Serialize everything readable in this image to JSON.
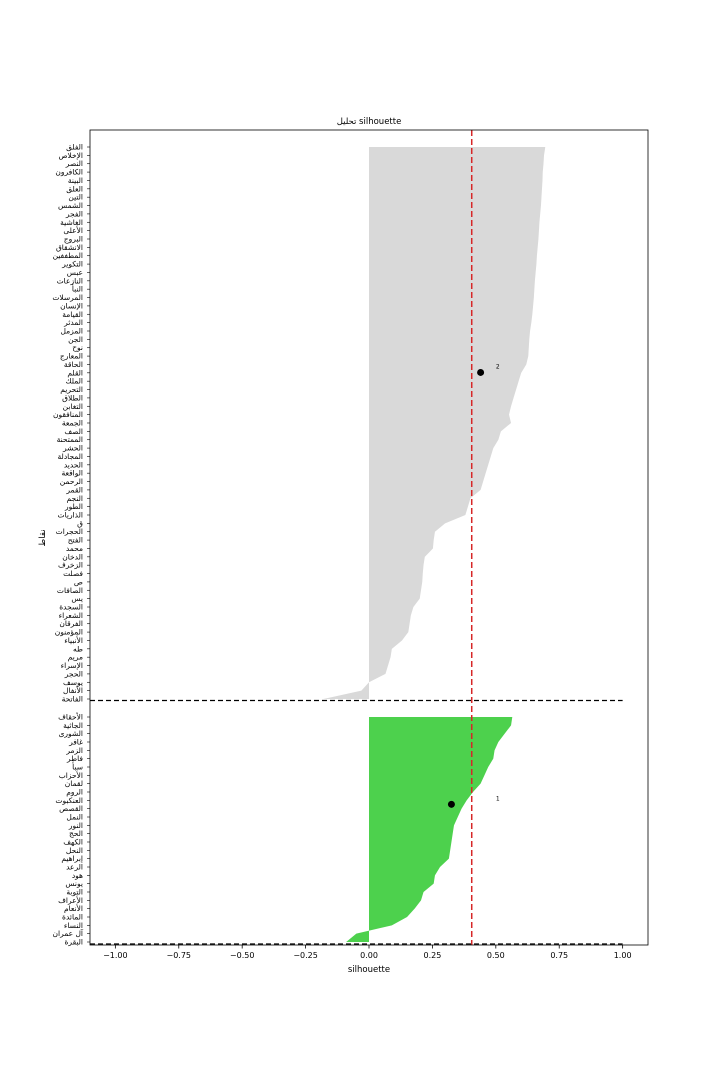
{
  "chart_data": {
    "type": "area",
    "title": "تحليل silhouette",
    "xlabel": "silhouette",
    "ylabel": "نقاط",
    "xlim": [
      -1.1,
      1.1
    ],
    "xticks": [
      -1.0,
      -0.75,
      -0.5,
      -0.25,
      0.0,
      0.25,
      0.5,
      0.75,
      1.0
    ],
    "xtick_labels": [
      "−1.00",
      "−0.75",
      "−0.50",
      "−0.25",
      "0.00",
      "0.25",
      "0.50",
      "0.75",
      "1.00"
    ],
    "threshold_line": {
      "x": 0.405,
      "color": "#d62728",
      "style": "dashed"
    },
    "grid": false,
    "clusters": [
      {
        "label": "2",
        "color": "#d9d9d9",
        "centroid": {
          "x": 0.44
        },
        "items": [
          "الفلق",
          "الإخلاص",
          "النصر",
          "الكافرون",
          "البينة",
          "العلق",
          "التين",
          "الشمس",
          "الفجر",
          "الغاشية",
          "الأعلى",
          "البروج",
          "الانشقاق",
          "المطففين",
          "التكوير",
          "عبس",
          "النازعات",
          "النبأ",
          "المرسلات",
          "الإنسان",
          "القيامة",
          "المدثر",
          "المزمل",
          "الجن",
          "نوح",
          "المعارج",
          "الحاقة",
          "القلم",
          "الملك",
          "التحريم",
          "الطلاق",
          "التغابن",
          "المنافقون",
          "الجمعة",
          "الصف",
          "الممتحنة",
          "الحشر",
          "المجادلة",
          "الحديد",
          "الواقعة",
          "الرحمن",
          "القمر",
          "النجم",
          "الطور",
          "الذاريات",
          "ق",
          "الحجرات",
          "الفتح",
          "محمد",
          "الدخان",
          "الزخرف",
          "فصلت",
          "ص",
          "الصافات",
          "يس",
          "السجدة",
          "الشعراء",
          "الفرقان",
          "المؤمنون",
          "الأنبياء",
          "طه",
          "مريم",
          "الإسراء",
          "الحجر",
          "يوسف",
          "الأنفال",
          "الفاتحة"
        ],
        "values": [
          0.695,
          0.69,
          0.688,
          0.685,
          0.684,
          0.682,
          0.68,
          0.678,
          0.675,
          0.672,
          0.67,
          0.668,
          0.665,
          0.662,
          0.66,
          0.657,
          0.654,
          0.652,
          0.65,
          0.647,
          0.644,
          0.64,
          0.635,
          0.632,
          0.63,
          0.628,
          0.62,
          0.6,
          0.59,
          0.58,
          0.57,
          0.56,
          0.552,
          0.56,
          0.52,
          0.51,
          0.49,
          0.48,
          0.47,
          0.46,
          0.45,
          0.44,
          0.4,
          0.39,
          0.38,
          0.3,
          0.26,
          0.255,
          0.252,
          0.22,
          0.215,
          0.212,
          0.21,
          0.205,
          0.2,
          0.175,
          0.165,
          0.16,
          0.155,
          0.13,
          0.09,
          0.085,
          0.075,
          0.065,
          0.0,
          -0.03,
          -0.18
        ]
      },
      {
        "label": "1",
        "color": "#4dd14d",
        "centroid": {
          "x": 0.325
        },
        "items": [
          "الأحقاف",
          "الجاثية",
          "الشورى",
          "غافر",
          "الزمر",
          "فاطر",
          "سبأ",
          "الأحزاب",
          "لقمان",
          "الروم",
          "العنكبوت",
          "القصص",
          "النمل",
          "النور",
          "الحج",
          "الكهف",
          "النحل",
          "إبراهيم",
          "الرعد",
          "هود",
          "يونس",
          "التوبة",
          "الأعراف",
          "الأنعام",
          "المائدة",
          "النساء",
          "آل عمران",
          "البقرة"
        ],
        "values": [
          0.565,
          0.56,
          0.535,
          0.51,
          0.495,
          0.49,
          0.47,
          0.455,
          0.44,
          0.41,
          0.385,
          0.365,
          0.35,
          0.335,
          0.33,
          0.325,
          0.32,
          0.315,
          0.28,
          0.26,
          0.255,
          0.215,
          0.205,
          0.18,
          0.15,
          0.09,
          -0.05,
          -0.09
        ]
      }
    ]
  }
}
